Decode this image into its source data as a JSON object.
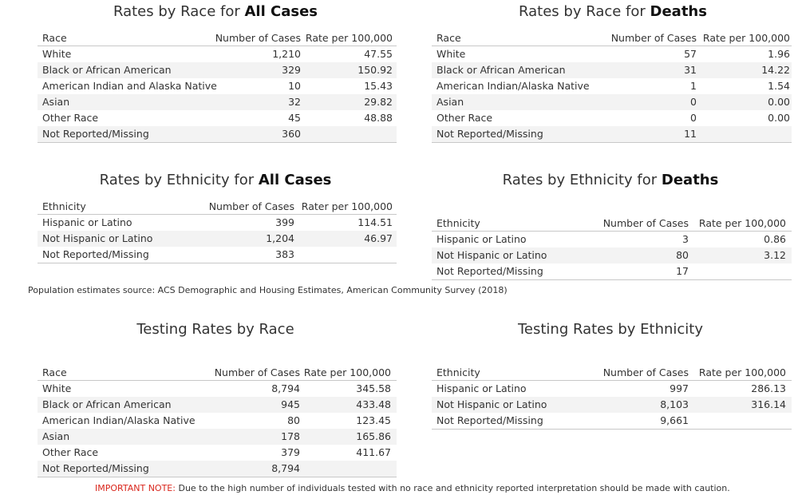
{
  "tables": [
    {
      "title": {
        "text": "Rates by Race for",
        "emphasis": "All Cases"
      },
      "columns": [
        "Race",
        "Number of Cases",
        "Rate per 100,000"
      ],
      "rows": [
        [
          "White",
          "1,210",
          "47.55"
        ],
        [
          "Black or African American",
          "329",
          "150.92"
        ],
        [
          "American Indian and Alaska Native",
          "10",
          "15.43"
        ],
        [
          "Asian",
          "32",
          "29.82"
        ],
        [
          "Other Race",
          "45",
          "48.88"
        ],
        [
          "Not Reported/Missing",
          "360"
        ]
      ]
    },
    {
      "title": {
        "text": "Rates by Race for",
        "emphasis": "Deaths"
      },
      "columns": [
        "Race",
        "Number of Cases",
        "Rate per 100,000"
      ],
      "rows": [
        [
          "White",
          "57",
          "1.96"
        ],
        [
          "Black or African American",
          "31",
          "14.22"
        ],
        [
          "American Indian/Alaska Native",
          "1",
          "1.54"
        ],
        [
          "Asian",
          "0",
          "0.00"
        ],
        [
          "Other Race",
          "0",
          "0.00"
        ],
        [
          "Not Reported/Missing",
          "11"
        ]
      ]
    },
    {
      "title": {
        "text": "Rates by Ethnicity for",
        "emphasis": "All Cases"
      },
      "columns": [
        "Ethnicity",
        "Number of Cases",
        "Rater per 100,000"
      ],
      "rows": [
        [
          "Hispanic or Latino",
          "399",
          "114.51"
        ],
        [
          "Not Hispanic or Latino",
          "1,204",
          "46.97"
        ],
        [
          "Not Reported/Missing",
          "383"
        ]
      ]
    },
    {
      "title": {
        "text": "Rates by Ethnicity for",
        "emphasis": "Deaths"
      },
      "columns": [
        "Ethnicity",
        "Number of Cases",
        "Rate per 100,000"
      ],
      "rows": [
        [
          "Hispanic or Latino",
          "3",
          "0.86"
        ],
        [
          "Not Hispanic or Latino",
          "80",
          "3.12"
        ],
        [
          "Not Reported/Missing",
          "17"
        ]
      ]
    },
    {
      "title": {
        "text": "Testing Rates by Race"
      },
      "columns": [
        "Race",
        "Number of Cases",
        "Rate per 100,000"
      ],
      "rows": [
        [
          "White",
          "8,794",
          "345.58"
        ],
        [
          "Black or African American",
          "945",
          "433.48"
        ],
        [
          "American Indian/Alaska Native",
          "80",
          "123.45"
        ],
        [
          "Asian",
          "178",
          "165.86"
        ],
        [
          "Other Race",
          "379",
          "411.67"
        ],
        [
          "Not Reported/Missing",
          "8,794"
        ]
      ]
    },
    {
      "title": {
        "text": "Testing Rates by Ethnicity"
      },
      "columns": [
        "Ethnicity",
        "Number of Cases",
        "Rate per 100,000"
      ],
      "rows": [
        [
          "Hispanic or Latino",
          "997",
          "286.13"
        ],
        [
          "Not Hispanic or Latino",
          "8,103",
          "316.14"
        ],
        [
          "Not Reported/Missing",
          "9,661"
        ]
      ]
    }
  ],
  "source": "Population estimates source: ACS Demographic and Housing Estimates, American Community Survey (2018)",
  "note": {
    "label": "IMPORTANT NOTE:",
    "text": "Due to the high number of individuals tested with no race and ethnicity reported interpretation should be made with caution."
  }
}
